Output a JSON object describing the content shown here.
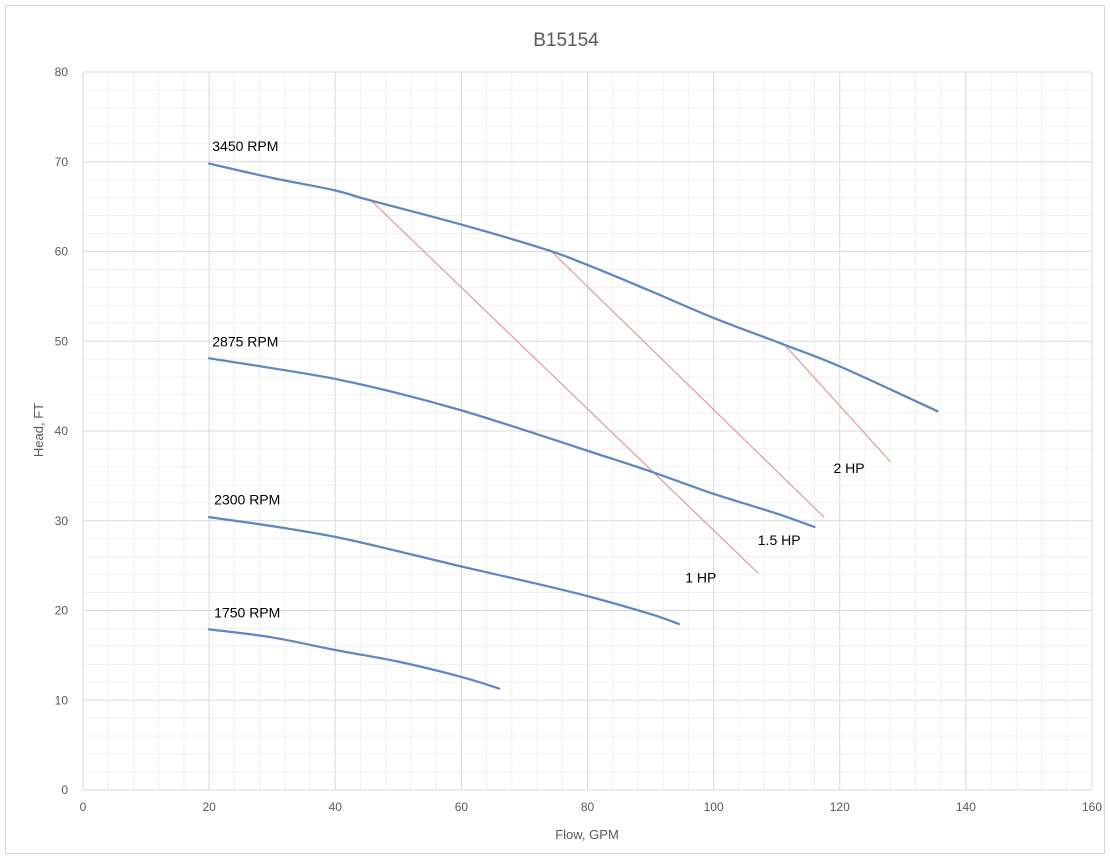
{
  "chart_data": {
    "type": "line",
    "title": "B15154",
    "xlabel": "Flow, GPM",
    "ylabel": "Head, FT",
    "xlim": [
      0,
      160
    ],
    "ylim": [
      0,
      80
    ],
    "xticks": [
      "0",
      "20",
      "40",
      "60",
      "80",
      "100",
      "120",
      "140",
      "160"
    ],
    "yticks": [
      "0",
      "10",
      "20",
      "30",
      "40",
      "50",
      "60",
      "70",
      "80"
    ],
    "grid": true,
    "legend": "none",
    "series": [
      {
        "name": "3450 RPM",
        "color": "#5b87c5",
        "points": [
          [
            20,
            69.8
          ],
          [
            30,
            68.2
          ],
          [
            40,
            66.8
          ],
          [
            45,
            65.8
          ],
          [
            60,
            63.0
          ],
          [
            73.5,
            60.2
          ],
          [
            80,
            58.5
          ],
          [
            90,
            55.6
          ],
          [
            100,
            52.6
          ],
          [
            110.5,
            49.8
          ],
          [
            120,
            47.2
          ],
          [
            135.5,
            42.2
          ]
        ]
      },
      {
        "name": "2875 RPM",
        "color": "#5b87c5",
        "points": [
          [
            20,
            48.1
          ],
          [
            30,
            47.0
          ],
          [
            40,
            45.8
          ],
          [
            50,
            44.2
          ],
          [
            60,
            42.3
          ],
          [
            70,
            40.1
          ],
          [
            80,
            37.8
          ],
          [
            90,
            35.5
          ],
          [
            100,
            33.0
          ],
          [
            110,
            30.8
          ],
          [
            116,
            29.3
          ]
        ]
      },
      {
        "name": "2300 RPM",
        "color": "#5b87c5",
        "points": [
          [
            20,
            30.4
          ],
          [
            30,
            29.4
          ],
          [
            40,
            28.2
          ],
          [
            50,
            26.6
          ],
          [
            60,
            24.9
          ],
          [
            70,
            23.3
          ],
          [
            80,
            21.6
          ],
          [
            90,
            19.6
          ],
          [
            94.5,
            18.5
          ]
        ]
      },
      {
        "name": "1750 RPM",
        "color": "#5b87c5",
        "points": [
          [
            20,
            17.9
          ],
          [
            30,
            17.0
          ],
          [
            40,
            15.6
          ],
          [
            50,
            14.3
          ],
          [
            60,
            12.6
          ],
          [
            66,
            11.3
          ]
        ]
      },
      {
        "name": "1 HP",
        "color": "#e0a09a",
        "points": [
          [
            45.5,
            65.8
          ],
          [
            107,
            24.2
          ]
        ]
      },
      {
        "name": "1.5 HP",
        "color": "#e0a09a",
        "points": [
          [
            74,
            60.2
          ],
          [
            117.5,
            30.4
          ]
        ]
      },
      {
        "name": "2 HP",
        "color": "#e0a09a",
        "points": [
          [
            111,
            49.8
          ],
          [
            128,
            36.6
          ]
        ]
      }
    ],
    "annotations": [
      {
        "text": "3450 RPM",
        "x": 20.5,
        "y": 71.2
      },
      {
        "text": "2875 RPM",
        "x": 20.5,
        "y": 49.4
      },
      {
        "text": "2300 RPM",
        "x": 20.8,
        "y": 31.8
      },
      {
        "text": "1750 RPM",
        "x": 20.8,
        "y": 19.2
      },
      {
        "text": "2 HP",
        "x": 119,
        "y": 35.3
      },
      {
        "text": "1.5 HP",
        "x": 107,
        "y": 27.3
      },
      {
        "text": "1 HP",
        "x": 95.5,
        "y": 23.1
      }
    ]
  }
}
